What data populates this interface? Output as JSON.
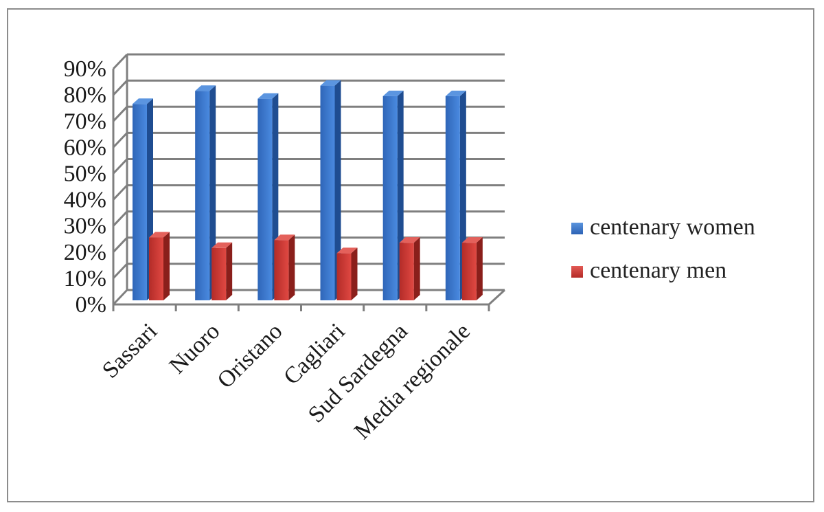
{
  "chart_data": {
    "type": "bar",
    "title": "",
    "xlabel": "",
    "ylabel": "",
    "categories": [
      "Sassari",
      "Nuoro",
      "Oristano",
      "Cagliari",
      "Sud Sardegna",
      "Media regionale"
    ],
    "series": [
      {
        "name": "centenary women",
        "values": [
          75,
          80,
          77,
          82,
          78,
          78
        ],
        "color": "#3b78cc"
      },
      {
        "name": "centenary men",
        "values": [
          24,
          20,
          23,
          18,
          22,
          22
        ],
        "color": "#d23b36"
      }
    ],
    "yticks": [
      "0%",
      "10%",
      "20%",
      "30%",
      "40%",
      "50%",
      "60%",
      "70%",
      "80%",
      "90%"
    ],
    "ylim": [
      0,
      90
    ],
    "grid": true,
    "legend_position": "right",
    "style": "3d-clustered-column"
  },
  "legend": {
    "items": [
      {
        "label": "centenary women",
        "color": "#3b78cc"
      },
      {
        "label": "centenary men",
        "color": "#d23b36"
      }
    ]
  }
}
